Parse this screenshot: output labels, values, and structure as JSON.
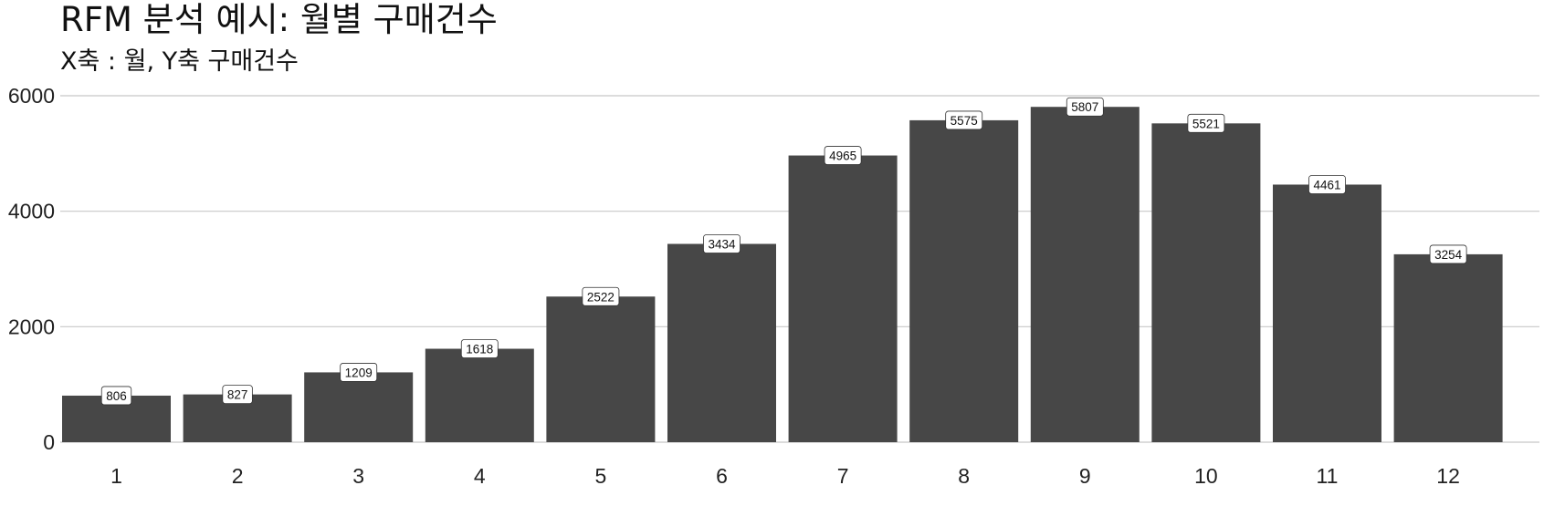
{
  "chart_data": {
    "type": "bar",
    "title": "RFM 분석 예시: 월별 구매건수",
    "subtitle": "X축 : 월, Y축 구매건수",
    "xlabel": "",
    "ylabel": "",
    "categories": [
      "1",
      "2",
      "3",
      "4",
      "5",
      "6",
      "7",
      "8",
      "9",
      "10",
      "11",
      "12"
    ],
    "values": [
      806,
      827,
      1209,
      1618,
      2522,
      3434,
      4965,
      5575,
      5807,
      5521,
      4461,
      3254
    ],
    "ylim": [
      0,
      6000
    ],
    "yticks": [
      0,
      2000,
      4000,
      6000
    ],
    "grid": "horizontal",
    "legend": "none",
    "bar_color": "#474747",
    "grid_color": "#c8c8c8"
  }
}
